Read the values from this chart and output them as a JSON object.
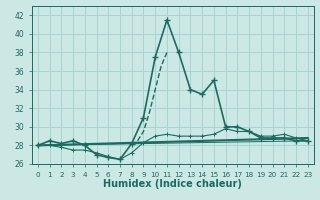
{
  "title": "",
  "xlabel": "Humidex (Indice chaleur)",
  "bg_color": "#cce8e4",
  "grid_color": "#a8d4cf",
  "line_color": "#1a6b60",
  "xlim": [
    -0.5,
    23.5
  ],
  "ylim": [
    26,
    43
  ],
  "yticks": [
    26,
    28,
    30,
    32,
    34,
    36,
    38,
    40,
    42
  ],
  "xticks": [
    0,
    1,
    2,
    3,
    4,
    5,
    6,
    7,
    8,
    9,
    10,
    11,
    12,
    13,
    14,
    15,
    16,
    17,
    18,
    19,
    20,
    21,
    22,
    23
  ],
  "main_curve_x": [
    0,
    1,
    2,
    3,
    4,
    5,
    6,
    7,
    8,
    9,
    10,
    11,
    12,
    13,
    14,
    15,
    16,
    17,
    18,
    19,
    20,
    21,
    22,
    23
  ],
  "main_curve_y": [
    28.0,
    28.5,
    28.2,
    28.5,
    28.0,
    27.0,
    26.7,
    26.5,
    28.2,
    31.0,
    37.5,
    41.5,
    38.0,
    34.0,
    33.5,
    35.0,
    30.0,
    30.0,
    29.5,
    28.8,
    28.8,
    28.8,
    28.5,
    28.5
  ],
  "line2_x": [
    0,
    23
  ],
  "line2_y": [
    28.0,
    28.8
  ],
  "line3_x": [
    0,
    23
  ],
  "line3_y": [
    28.0,
    28.5
  ],
  "bumpy_x": [
    0,
    1,
    2,
    3,
    4,
    5,
    6,
    7,
    8,
    9,
    10,
    11,
    12,
    13,
    14,
    15,
    16,
    17,
    18,
    19,
    20,
    21,
    22,
    23
  ],
  "bumpy_y": [
    28.0,
    28.0,
    27.8,
    27.5,
    27.5,
    27.2,
    26.8,
    26.5,
    27.2,
    28.3,
    29.0,
    29.2,
    29.0,
    29.0,
    29.0,
    29.2,
    29.8,
    29.5,
    29.5,
    29.0,
    29.0,
    29.2,
    28.8,
    28.5
  ],
  "dashed_x": [
    8.5,
    9.0,
    9.5,
    10.0,
    10.5,
    11.0
  ],
  "dashed_y": [
    28.5,
    29.5,
    31.5,
    34.0,
    36.5,
    38.0
  ]
}
